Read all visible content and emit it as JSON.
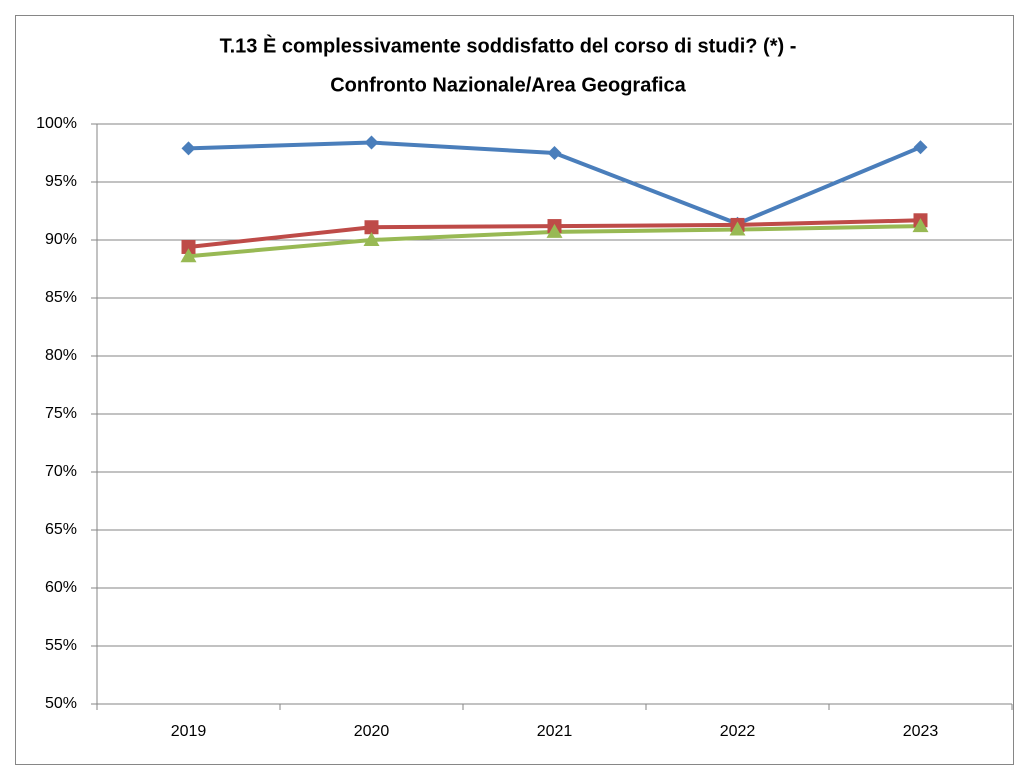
{
  "chart_data": {
    "type": "line",
    "title": [
      "T.13 È complessivamente soddisfatto del corso di studi? (*) -",
      "Confronto Nazionale/Area Geografica"
    ],
    "categories": [
      "2019",
      "2020",
      "2021",
      "2022",
      "2023"
    ],
    "series": [
      {
        "color": "#4a7ebb",
        "marker": "diamond",
        "values": [
          97.9,
          98.4,
          97.5,
          91.4,
          98.0
        ]
      },
      {
        "color": "#be4b48",
        "marker": "square",
        "values": [
          89.4,
          91.1,
          91.2,
          91.3,
          91.7
        ]
      },
      {
        "color": "#98b954",
        "marker": "triangle",
        "values": [
          88.6,
          90.0,
          90.7,
          90.9,
          91.2
        ]
      }
    ],
    "ylim": [
      50,
      100
    ],
    "yticks": [
      {
        "value": 50,
        "label": "50%"
      },
      {
        "value": 55,
        "label": "55%"
      },
      {
        "value": 60,
        "label": "60%"
      },
      {
        "value": 65,
        "label": "65%"
      },
      {
        "value": 70,
        "label": "70%"
      },
      {
        "value": 75,
        "label": "75%"
      },
      {
        "value": 80,
        "label": "80%"
      },
      {
        "value": 85,
        "label": "85%"
      },
      {
        "value": 90,
        "label": "90%"
      },
      {
        "value": 95,
        "label": "95%"
      },
      {
        "value": 100,
        "label": "100%"
      }
    ],
    "grid": true
  }
}
